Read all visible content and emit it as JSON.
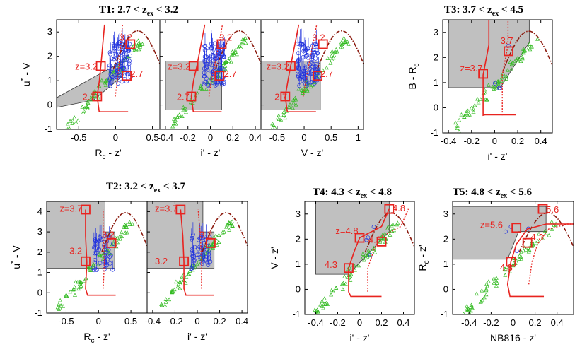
{
  "figure_titles": {
    "t1": "T1: 2.7 < z",
    "t1_suffix": " < 3.2",
    "t2": "T2: 3.2 < z",
    "t2_suffix": " < 3.7",
    "t3": "T3: 3.7 < z",
    "t3_suffix": " < 4.5",
    "t4": "T4: 4.3 < z",
    "t4_suffix": " < 4.8",
    "t5": "T5: 4.8 < z",
    "t5_suffix": " < 5.6",
    "sub": "ex"
  },
  "colors": {
    "track": "#e8231f",
    "track_dark": "#8b1a0e",
    "galaxies": "#2233dd",
    "stars": "#33bb22",
    "selection": "#c0c0c0"
  },
  "chart_data": [
    {
      "panel": "t1a",
      "type": "scatter",
      "xlabel": "R",
      "xlabel_sub": "c",
      "xlabel_rest": " - z'",
      "ylabel": "u",
      "ylabel_sup": "*",
      "ylabel_rest": " - V",
      "xlim": [
        -0.8,
        0.6
      ],
      "ylim": [
        -1,
        3.5
      ],
      "xticks": [
        "-0.5",
        "0",
        "0.5"
      ],
      "xtick_vals": [
        -0.5,
        0,
        0.5
      ],
      "yticks": [
        "-1",
        "0",
        "1",
        "2",
        "3"
      ],
      "ytick_vals": [
        -1,
        0,
        1,
        2,
        3
      ],
      "labels": [
        {
          "text": "3.2",
          "x": 0.05,
          "y": 2.65
        },
        {
          "text": "z=3.2",
          "x": -0.55,
          "y": 1.45
        },
        {
          "text": "2.7",
          "x": 0.2,
          "y": 1.15
        },
        {
          "text": "2.7",
          "x": -0.45,
          "y": 0.2
        }
      ],
      "markers": [
        {
          "x": 0.2,
          "y": 2.5
        },
        {
          "x": -0.2,
          "y": 1.6
        },
        {
          "x": 0.15,
          "y": 1.2
        },
        {
          "x": -0.25,
          "y": 0.35
        }
      ]
    },
    {
      "panel": "t1b",
      "type": "scatter",
      "xlabel": "i' - z'",
      "xlim": [
        -0.45,
        0.45
      ],
      "ylim": [
        -1,
        3.5
      ],
      "xticks": [
        "-0.4",
        "-0.2",
        "0",
        "0.2",
        "0.4"
      ],
      "xtick_vals": [
        -0.4,
        -0.2,
        0,
        0.2,
        0.4
      ],
      "labels": [
        {
          "text": "3.2",
          "x": 0.08,
          "y": 2.65
        },
        {
          "text": "z=3.2",
          "x": -0.38,
          "y": 1.45
        },
        {
          "text": "2.7",
          "x": 0.12,
          "y": 1.15
        },
        {
          "text": "2.7",
          "x": -0.3,
          "y": 0.2
        }
      ],
      "markers": [
        {
          "x": 0.1,
          "y": 2.5
        },
        {
          "x": -0.15,
          "y": 1.6
        },
        {
          "x": 0.08,
          "y": 1.2
        },
        {
          "x": -0.17,
          "y": 0.35
        }
      ]
    },
    {
      "panel": "t1c",
      "type": "scatter",
      "xlabel": "V - z'",
      "xlim": [
        -0.8,
        1.1
      ],
      "ylim": [
        -1,
        3.5
      ],
      "xticks": [
        "-0.5",
        "0",
        "0.5",
        "1"
      ],
      "xtick_vals": [
        -0.5,
        0,
        0.5,
        1
      ],
      "labels": [
        {
          "text": "3.2",
          "x": 0.15,
          "y": 2.65
        },
        {
          "text": "z=3.2",
          "x": -0.7,
          "y": 1.45
        },
        {
          "text": "2.7",
          "x": 0.3,
          "y": 1.15
        },
        {
          "text": "2.7",
          "x": -0.55,
          "y": 0.2
        }
      ],
      "markers": [
        {
          "x": 0.35,
          "y": 2.5
        },
        {
          "x": -0.25,
          "y": 1.6
        },
        {
          "x": 0.25,
          "y": 1.2
        },
        {
          "x": -0.35,
          "y": 0.35
        }
      ]
    },
    {
      "panel": "t3",
      "type": "scatter",
      "xlabel": "i' - z'",
      "ylabel": "B - R",
      "ylabel_sub": "c",
      "xlim": [
        -0.45,
        0.5
      ],
      "ylim": [
        -1,
        3.5
      ],
      "xticks": [
        "-0.4",
        "-0.2",
        "0",
        "0.2",
        "0.4"
      ],
      "xtick_vals": [
        -0.4,
        -0.2,
        0,
        0.2,
        0.4
      ],
      "yticks": [
        "-1",
        "0",
        "1",
        "2",
        "3"
      ],
      "ytick_vals": [
        -1,
        0,
        1,
        2,
        3
      ],
      "labels": [
        {
          "text": "3.7",
          "x": 0.05,
          "y": 2.55
        },
        {
          "text": "z=3.7",
          "x": -0.3,
          "y": 1.45
        }
      ],
      "markers": [
        {
          "x": 0.12,
          "y": 2.25
        },
        {
          "x": -0.1,
          "y": 1.35
        }
      ]
    },
    {
      "panel": "t2a",
      "type": "scatter",
      "xlabel": "R",
      "xlabel_sub": "c",
      "xlabel_rest": " - z'",
      "ylabel": "u",
      "ylabel_sup": "*",
      "ylabel_rest": " - V",
      "xlim": [
        -0.8,
        0.75
      ],
      "ylim": [
        -1,
        4.5
      ],
      "xticks": [
        "-0.5",
        "0",
        "0.5"
      ],
      "xtick_vals": [
        -0.5,
        0,
        0.5
      ],
      "yticks": [
        "-1",
        "0",
        "1",
        "2",
        "3",
        "4"
      ],
      "ytick_vals": [
        -1,
        0,
        1,
        2,
        3,
        4
      ],
      "labels": [
        {
          "text": "z=3.7",
          "x": -0.6,
          "y": 4.0
        },
        {
          "text": "3.2",
          "x": 0.05,
          "y": 2.7
        },
        {
          "text": "3.2",
          "x": -0.45,
          "y": 1.9
        }
      ],
      "markers": [
        {
          "x": -0.2,
          "y": 4.1
        },
        {
          "x": 0.2,
          "y": 2.45
        },
        {
          "x": -0.2,
          "y": 1.55
        }
      ]
    },
    {
      "panel": "t2b",
      "type": "scatter",
      "xlabel": "i' - z'",
      "xlim": [
        -0.45,
        0.45
      ],
      "ylim": [
        -1,
        4.5
      ],
      "xticks": [
        "-0.4",
        "-0.2",
        "0",
        "0.2",
        "0.4"
      ],
      "xtick_vals": [
        -0.4,
        -0.2,
        0,
        0.2,
        0.4
      ],
      "labels": [
        {
          "text": "z=3.7",
          "x": -0.38,
          "y": 4.0
        },
        {
          "text": "3.2",
          "x": 0.02,
          "y": 2.7
        },
        {
          "text": "3.2",
          "x": -0.38,
          "y": 1.4
        }
      ],
      "markers": [
        {
          "x": -0.15,
          "y": 4.1
        },
        {
          "x": 0.12,
          "y": 2.45
        },
        {
          "x": -0.12,
          "y": 1.55
        }
      ]
    },
    {
      "panel": "t4",
      "type": "scatter",
      "xlabel": "i' - z'",
      "ylabel": "V - z'",
      "xlim": [
        -0.5,
        0.5
      ],
      "ylim": [
        -1,
        3.5
      ],
      "xticks": [
        "-0.4",
        "-0.2",
        "0",
        "0.2",
        "0.4"
      ],
      "xtick_vals": [
        -0.4,
        -0.2,
        0,
        0.2,
        0.4
      ],
      "yticks": [
        "-1",
        "0",
        "1",
        "2",
        "3"
      ],
      "ytick_vals": [
        -1,
        0,
        1,
        2,
        3
      ],
      "labels": [
        {
          "text": "4.8",
          "x": 0.3,
          "y": 3.1
        },
        {
          "text": "z=4.8",
          "x": -0.22,
          "y": 2.2
        },
        {
          "text": "4.3",
          "x": 0.08,
          "y": 1.85
        },
        {
          "text": "4.3",
          "x": -0.32,
          "y": 0.85
        }
      ],
      "markers": [
        {
          "x": 0.27,
          "y": 3.2
        },
        {
          "x": 0.0,
          "y": 2.05
        },
        {
          "x": 0.2,
          "y": 1.9
        },
        {
          "x": -0.1,
          "y": 0.85
        }
      ]
    },
    {
      "panel": "t5",
      "type": "scatter",
      "xlabel": "NB816 - z'",
      "ylabel": "R",
      "ylabel_sub": "c",
      "ylabel_rest": " - z'",
      "xlim": [
        -0.55,
        0.55
      ],
      "ylim": [
        -1,
        3.5
      ],
      "xticks": [
        "-0.4",
        "-0.2",
        "0",
        "0.2",
        "0.4"
      ],
      "xtick_vals": [
        -0.4,
        -0.2,
        0,
        0.2,
        0.4
      ],
      "yticks": [
        "-1",
        "0",
        "1",
        "2",
        "3"
      ],
      "ytick_vals": [
        -1,
        0,
        1,
        2,
        3
      ],
      "labels": [
        {
          "text": "5.6",
          "x": 0.3,
          "y": 3.05
        },
        {
          "text": "z=5.6",
          "x": -0.3,
          "y": 2.45
        },
        {
          "text": "4.3",
          "x": 0.16,
          "y": 1.95
        },
        {
          "text": "4.8",
          "x": -0.12,
          "y": 0.75
        }
      ],
      "markers": [
        {
          "x": 0.27,
          "y": 3.2
        },
        {
          "x": 0.03,
          "y": 2.45
        },
        {
          "x": 0.13,
          "y": 1.85
        },
        {
          "x": -0.02,
          "y": 1.1
        }
      ]
    }
  ]
}
